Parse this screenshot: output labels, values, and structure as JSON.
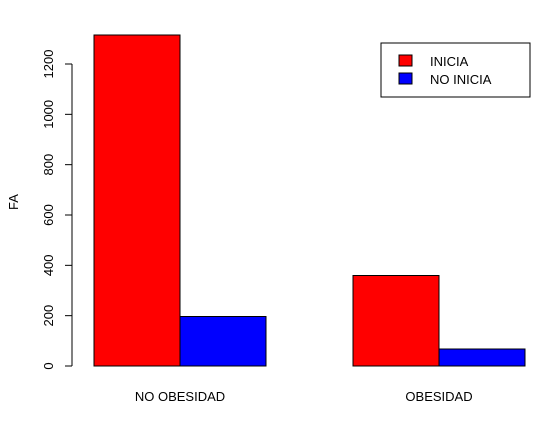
{
  "chart_data": {
    "type": "bar",
    "ylabel": "FA",
    "categories": [
      "NO OBESIDAD",
      "OBESIDAD"
    ],
    "series": [
      {
        "name": "INICIA",
        "values": [
          1315,
          360
        ]
      },
      {
        "name": "NO INICIA",
        "values": [
          197,
          68
        ]
      }
    ],
    "y_ticks": [
      "0",
      "200",
      "400",
      "600",
      "800",
      "1000",
      "1200"
    ],
    "ylim": [
      0,
      1320
    ],
    "legend_position": "top-right",
    "grid": false
  },
  "colors": {
    "INICIA": "#ff0000",
    "NO INICIA": "#0000ff"
  }
}
